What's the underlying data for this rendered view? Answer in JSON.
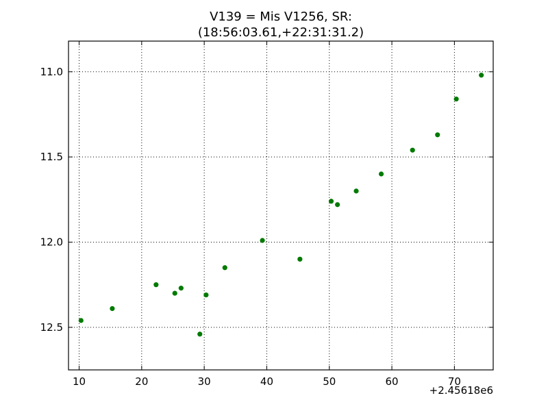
{
  "chart_data": {
    "type": "scatter",
    "title_line1": "V139 = Mis V1256, SR:",
    "title_line2": "(18:56:03.61,+22:31:31.2)",
    "xlabel": "",
    "ylabel": "",
    "x_offset_label": "+2.45618e6",
    "xlim": [
      8.3,
      76.2
    ],
    "ylim": [
      12.75,
      10.82
    ],
    "y_inverted": true,
    "grid": true,
    "marker_color": "#007a00",
    "x_ticks": [
      10,
      20,
      30,
      40,
      50,
      60,
      70
    ],
    "x_tick_labels": [
      "10",
      "20",
      "30",
      "40",
      "50",
      "60",
      "70"
    ],
    "y_ticks": [
      11.0,
      11.5,
      12.0,
      12.5
    ],
    "y_tick_labels": [
      "11.0",
      "11.5",
      "12.0",
      "12.5"
    ],
    "points": [
      {
        "x": 10.3,
        "y": 12.46
      },
      {
        "x": 15.3,
        "y": 12.39
      },
      {
        "x": 22.3,
        "y": 12.25
      },
      {
        "x": 25.3,
        "y": 12.3
      },
      {
        "x": 26.3,
        "y": 12.27
      },
      {
        "x": 29.3,
        "y": 12.54
      },
      {
        "x": 30.3,
        "y": 12.31
      },
      {
        "x": 33.3,
        "y": 12.15
      },
      {
        "x": 39.3,
        "y": 11.99
      },
      {
        "x": 45.3,
        "y": 12.1
      },
      {
        "x": 50.3,
        "y": 11.76
      },
      {
        "x": 51.3,
        "y": 11.78
      },
      {
        "x": 54.3,
        "y": 11.7
      },
      {
        "x": 58.3,
        "y": 11.6
      },
      {
        "x": 63.3,
        "y": 11.46
      },
      {
        "x": 67.3,
        "y": 11.37
      },
      {
        "x": 70.3,
        "y": 11.16
      },
      {
        "x": 74.3,
        "y": 11.02
      }
    ]
  }
}
